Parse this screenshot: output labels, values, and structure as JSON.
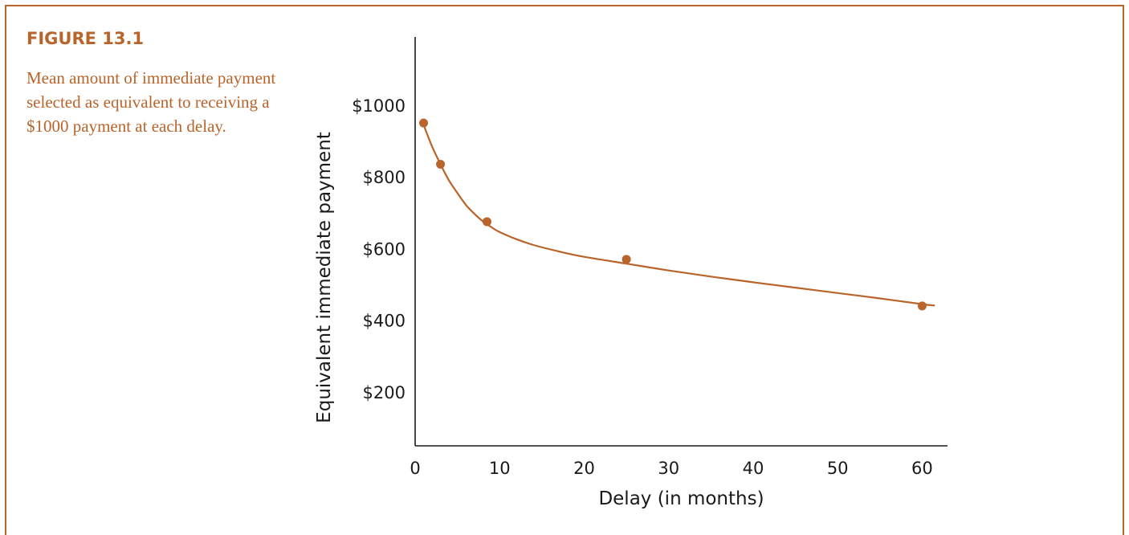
{
  "figure": {
    "label": "FIGURE 13.1",
    "caption": "Mean amount of immediate payment selected as equivalent to receiving a $1000 payment at each delay."
  },
  "colors": {
    "accent": "#b8642a",
    "axis": "#1a1a1a"
  },
  "chart_data": {
    "type": "scatter",
    "title": "",
    "xlabel": "Delay (in months)",
    "ylabel": "Equivalent immediate payment",
    "xlim": [
      0,
      63
    ],
    "ylim": [
      50,
      1190
    ],
    "xticks": [
      0,
      10,
      20,
      30,
      40,
      50,
      60
    ],
    "yticks": [
      200,
      400,
      600,
      800,
      1000
    ],
    "ytick_labels": [
      "$200",
      "$400",
      "$600",
      "$800",
      "$1000"
    ],
    "grid": false,
    "series": [
      {
        "points": [
          {
            "x": 1,
            "y": 950
          },
          {
            "x": 3,
            "y": 835
          },
          {
            "x": 8.5,
            "y": 675
          },
          {
            "x": 25,
            "y": 570
          },
          {
            "x": 60,
            "y": 440
          }
        ]
      }
    ],
    "fitted_curve": [
      {
        "x": 1,
        "y": 945
      },
      {
        "x": 2,
        "y": 885
      },
      {
        "x": 3,
        "y": 835
      },
      {
        "x": 4,
        "y": 790
      },
      {
        "x": 5,
        "y": 755
      },
      {
        "x": 6,
        "y": 722
      },
      {
        "x": 7,
        "y": 697
      },
      {
        "x": 8,
        "y": 676
      },
      {
        "x": 9,
        "y": 660
      },
      {
        "x": 10,
        "y": 646
      },
      {
        "x": 12,
        "y": 626
      },
      {
        "x": 14,
        "y": 610
      },
      {
        "x": 17,
        "y": 592
      },
      {
        "x": 20,
        "y": 577
      },
      {
        "x": 25,
        "y": 558
      },
      {
        "x": 30,
        "y": 539
      },
      {
        "x": 35,
        "y": 522
      },
      {
        "x": 40,
        "y": 506
      },
      {
        "x": 45,
        "y": 491
      },
      {
        "x": 50,
        "y": 476
      },
      {
        "x": 55,
        "y": 461
      },
      {
        "x": 60,
        "y": 445
      },
      {
        "x": 61.5,
        "y": 441
      }
    ]
  }
}
